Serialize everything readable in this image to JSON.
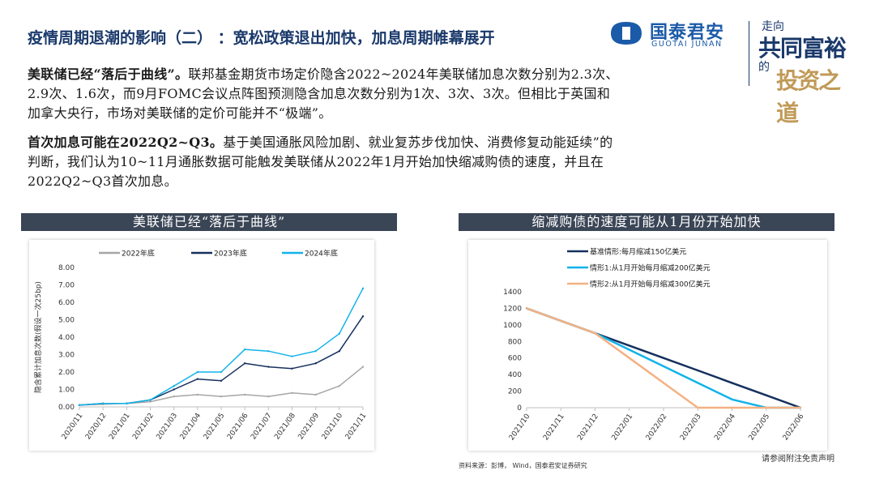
{
  "header": {
    "title": "疫情周期退潮的影响（二）  ：宽松政策退出加快，加息周期帷幕展开",
    "brand_cn": "国泰君安",
    "brand_en": "GUOTAI JUNAN",
    "slogan_1": "走向",
    "slogan_2": "共同富裕",
    "slogan_3": "的",
    "slogan_4": "投资之道"
  },
  "body": {
    "p1_bold": "美联储已经“落后于曲线”。",
    "p1_line1": "联邦基金期货市场定价隐含2022~2024年美联储加息次数分别为2.3次、",
    "p1_line2": "2.9次、1.6次，而9月FOMC会议点阵图预测隐含加息次数分别为1次、3次、3次。但相比于英国和",
    "p1_line3": "加拿大央行，市场对美联储的定价可能并不“极端”。",
    "p2_bold": "首次加息可能在2022Q2~Q3。",
    "p2_line1": "基于美国通胀风险加剧、就业复苏步伐加快、消费修复动能延续”的",
    "p2_line2": "判断，我们认为10~11月通胀数据可能触发美联储从2022年1月开始加快缩减购债的速度，并且在",
    "p2_line3": "2022Q2~Q3首次加息。"
  },
  "chart_data": [
    {
      "type": "line",
      "banner": "美联储已经“落后于曲线”",
      "ylabel": "隐含累计加息次数(假设一次25bp)",
      "ylim": [
        0,
        8
      ],
      "yticks": [
        "0.00",
        "1.00",
        "2.00",
        "3.00",
        "4.00",
        "5.00",
        "6.00",
        "7.00",
        "8.00"
      ],
      "categories": [
        "2020/11",
        "2020/12",
        "2021/01",
        "2021/02",
        "2021/03",
        "2021/04",
        "2021/05",
        "2021/06",
        "2021/07",
        "2021/08",
        "2021/09",
        "2021/10",
        "2021/11"
      ],
      "legend_position": "top",
      "series": [
        {
          "name": "2022年底",
          "color": "#a6a6a6",
          "values": [
            0.1,
            0.15,
            0.2,
            0.3,
            0.6,
            0.7,
            0.6,
            0.7,
            0.6,
            0.8,
            0.7,
            1.2,
            2.3
          ]
        },
        {
          "name": "2023年底",
          "color": "#16305e",
          "values": [
            0.1,
            0.2,
            0.2,
            0.4,
            1.0,
            1.6,
            1.5,
            2.5,
            2.3,
            2.2,
            2.5,
            3.2,
            5.2
          ]
        },
        {
          "name": "2024年底",
          "color": "#12b3ea",
          "values": [
            0.1,
            0.2,
            0.2,
            0.4,
            1.2,
            2.0,
            2.0,
            3.3,
            3.2,
            2.9,
            3.2,
            4.2,
            6.8
          ]
        }
      ]
    },
    {
      "type": "line",
      "banner": "缩减购债的速度可能从1月份开始加快",
      "ylim": [
        0,
        1400
      ],
      "yticks": [
        "0",
        "200",
        "400",
        "600",
        "800",
        "1000",
        "1200",
        "1400"
      ],
      "categories": [
        "2021/10",
        "2021/11",
        "2021/12",
        "2022/01",
        "2022/02",
        "2022/03",
        "2022/04",
        "2022/05",
        "2022/06"
      ],
      "legend_position": "top",
      "series": [
        {
          "name": "基准情形:每月缩减150亿美元",
          "color": "#16305e",
          "values": [
            1200,
            1050,
            900,
            750,
            600,
            450,
            300,
            150,
            0
          ]
        },
        {
          "name": "情形1:从1月开始每月缩减200亿美元",
          "color": "#12b3ea",
          "values": [
            1200,
            1050,
            900,
            700,
            500,
            300,
            100,
            0,
            0
          ]
        },
        {
          "name": "情形2:从1月开始每月缩减300亿美元",
          "color": "#f4b183",
          "values": [
            1200,
            1050,
            900,
            600,
            300,
            0,
            0,
            0,
            0
          ]
        }
      ]
    }
  ],
  "footer": {
    "source": "资料来源：彭博， Wind，国泰君安证券研究",
    "disclaimer": "请参阅附注免责声明"
  }
}
